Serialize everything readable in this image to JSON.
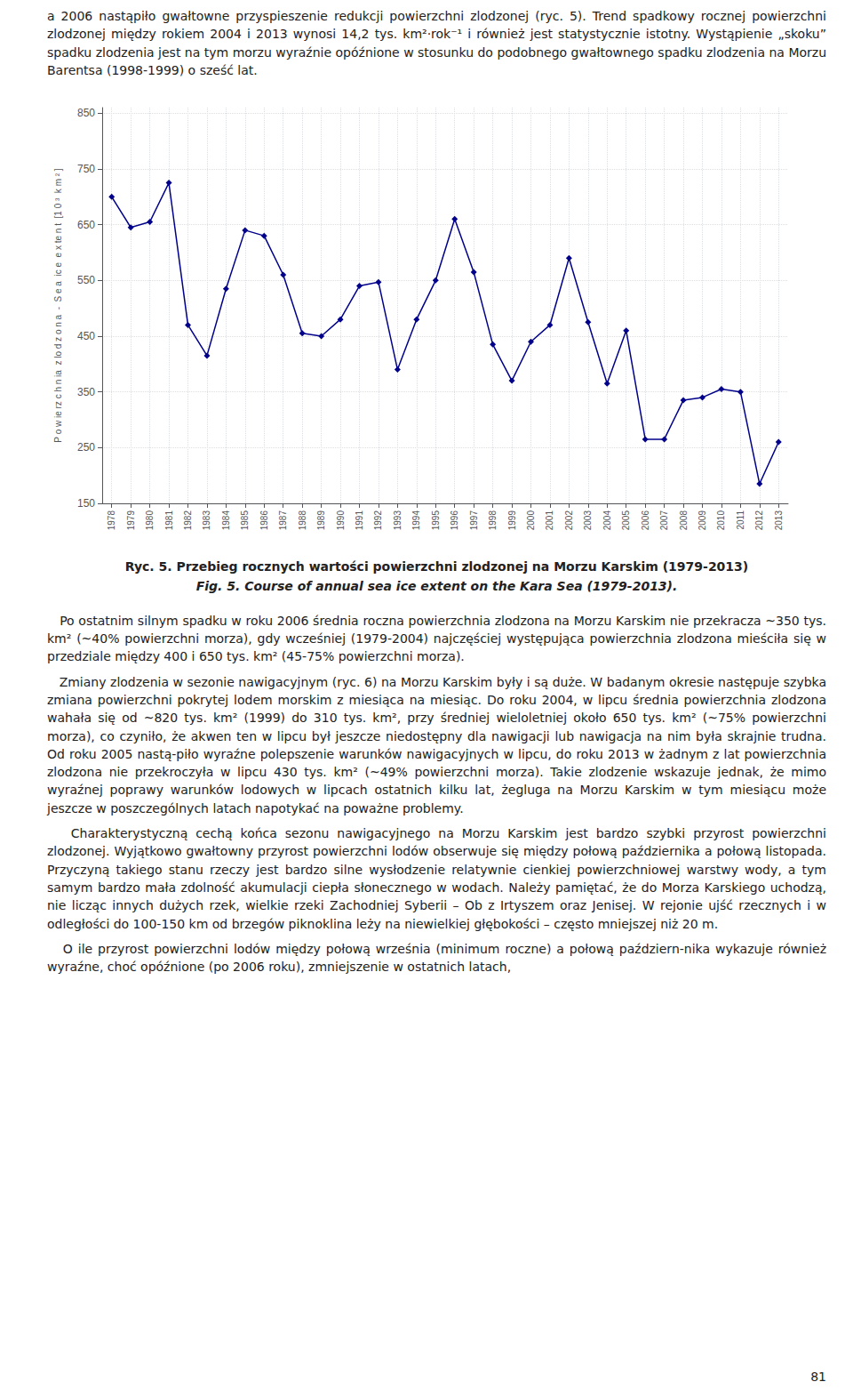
{
  "top_text": "a 2006 nastąpiło gwałtowne przyspieszenie redukcji powierzchni zlodzonej (ryc. 5). Trend spadkowy rocznej powierzchni zlodzonej między rokiem 2004 i 2013 wynosi 14,2 tys. km²·rok⁻¹ i również jest statystycznie istotny. Wystąpienie „skoku” spadku zlodzenia jest na tym morzu wyraźnie opóźnione w stosunku do podobnego gwałtownego spadku zlodzenia na Morzu Barentsa (1998-1999) o sześć lat.",
  "chart_data": {
    "type": "line",
    "title": "Ryc. 5. Przebieg rocznych wartości powierzchni zlodzonej na Morzu Karskim (1979-2013)",
    "subtitle": "Fig. 5. Course of annual sea ice extent on the Kara Sea (1979-2013).",
    "ylabel": "P o w ie rz c h n ia  z lo d z o n a  -  S e a  ic e  e x te n t  [1 0 ³  k m ² ]",
    "x": [
      1978,
      1979,
      1980,
      1981,
      1982,
      1983,
      1984,
      1985,
      1986,
      1987,
      1988,
      1989,
      1990,
      1991,
      1992,
      1993,
      1994,
      1995,
      1996,
      1997,
      1998,
      1999,
      2000,
      2001,
      2002,
      2003,
      2004,
      2005,
      2006,
      2007,
      2008,
      2009,
      2010,
      2011,
      2012,
      2013
    ],
    "values": [
      700,
      645,
      655,
      725,
      470,
      415,
      535,
      640,
      630,
      560,
      455,
      450,
      480,
      540,
      547,
      390,
      480,
      550,
      660,
      565,
      435,
      370,
      440,
      470,
      590,
      475,
      365,
      460,
      265,
      265,
      335,
      340,
      355,
      350,
      185,
      260
    ],
    "color": "#00008B",
    "marker": "diamond",
    "line_style": "solid",
    "xlim": [
      1977.5,
      2013.5
    ],
    "xticks": [
      1978,
      1979,
      1980,
      1981,
      1982,
      1983,
      1984,
      1985,
      1986,
      1987,
      1988,
      1989,
      1990,
      1991,
      1992,
      1993,
      1994,
      1995,
      1996,
      1997,
      1998,
      1999,
      2000,
      2001,
      2002,
      2003,
      2004,
      2005,
      2006,
      2007,
      2008,
      2009,
      2010,
      2011,
      2012,
      2013
    ],
    "ylim": [
      150,
      860
    ],
    "yticks": [
      150,
      250,
      350,
      450,
      550,
      650,
      750,
      850
    ],
    "grid": true
  },
  "bottom_paragraphs": [
    "   Po ostatnim silnym spadku w roku 2006 średnia roczna powierzchnia zlodzona na Morzu Karskim nie przekracza ~350 tys. km² (~40% powierzchni morza), gdy wcześniej (1979-2004) najczęściej występująca powierzchnia zlodzona mieściła się w przedziale między 400 i 650 tys. km² (45-75% powierzchni morza).",
    "   Zmiany zlodzenia w sezonie nawigacyjnym (ryc. 6) na Morzu Karskim były i są duże. W badanym okresie następuje szybka zmiana powierzchni pokrytej lodem morskim z miesiąca na miesiąc. Do roku 2004, w lipcu średnia powierzchnia zlodzona wahała się od ~820 tys. km² (1999) do 310 tys. km², przy średniej wieloletniej około 650 tys. km² (~75% powierzchni morza), co czyniło, że akwen ten w lipcu był jeszcze niedostępny dla nawigacji lub nawigacja na nim była skrajnie trudna. Od roku 2005 nastą-piło wyraźne polepszenie warunków nawigacyjnych w lipcu, do roku 2013 w żadnym z lat powierzchnia zlodzona nie przekroczyła w lipcu 430 tys. km² (~49% powierzchni morza). Takie zlodzenie wskazuje jednak, że mimo wyraźnej poprawy warunków lodowych w lipcach ostatnich kilku lat, żegluga na Morzu Karskim w tym miesiącu może jeszcze w poszczególnych latach napotykać na poważne problemy.",
    "   Charakterystyczną cechą końca sezonu nawigacyjnego na Morzu Karskim jest bardzo szybki przyrost powierzchni zlodzonej. Wyjątkowo gwałtowny przyrost powierzchni lodów obserwuje się między połową października a połową listopada. Przyczyną takiego stanu rzeczy jest bardzo silne wysłodzenie relatywnie cienkiej powierzchniowej warstwy wody, a tym samym bardzo mała zdolność akumulacji ciepła słonecznego w wodach. Należy pamiętać, że do Morza Karskiego uchodzą, nie licząc innych dużych rzek, wielkie rzeki Zachodniej Syberii – Ob z Irtyszem oraz Jenisej. W rejonie ujść rzecznych i w odległości do 100-150 km od brzegów piknoklina leży na niewielkiej głębokości – często mniejszej niż 20 m.",
    "   O ile przyrost powierzchni lodów między połową września (minimum roczne) a połową październ-nika wykazuje również wyraźne, choć opóźnione (po 2006 roku), zmniejszenie w ostatnich latach,"
  ],
  "page_number": "81"
}
